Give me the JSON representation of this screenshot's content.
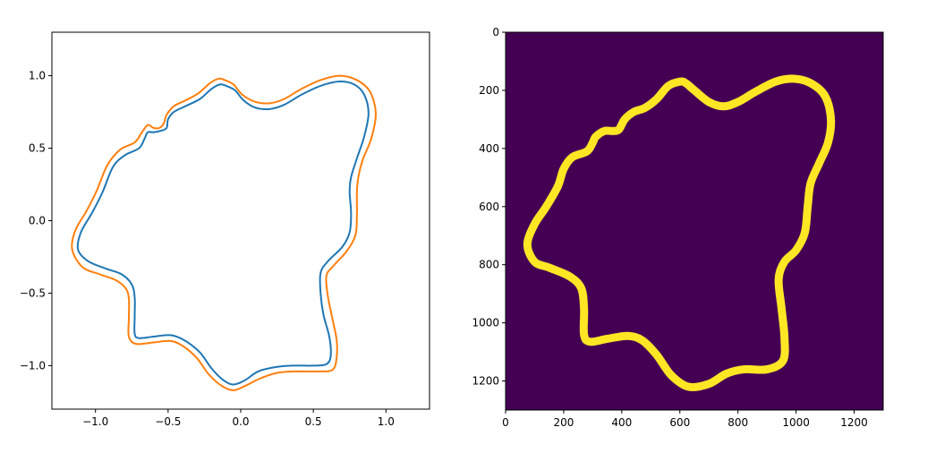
{
  "chart_data": [
    {
      "type": "line",
      "title": "",
      "xlabel": "",
      "ylabel": "",
      "xlim": [
        -1.3,
        1.3
      ],
      "ylim": [
        -1.3,
        1.3
      ],
      "xticks": [
        -1.0,
        -0.5,
        0.0,
        0.5,
        1.0
      ],
      "xtick_labels": [
        "−1.0",
        "−0.5",
        "0.0",
        "0.5",
        "1.0"
      ],
      "yticks": [
        1.0,
        0.5,
        0.0,
        -0.5,
        -1.0
      ],
      "ytick_labels": [
        "1.0",
        "0.5",
        "0.0",
        "−0.5",
        "−1.0"
      ],
      "grid": false,
      "series": [
        {
          "color": "#1f77b4",
          "closed": true,
          "points": [
            [
              -0.1,
              0.93
            ],
            [
              -0.04,
              0.9
            ],
            [
              0.02,
              0.83
            ],
            [
              0.1,
              0.78
            ],
            [
              0.2,
              0.77
            ],
            [
              0.3,
              0.8
            ],
            [
              0.42,
              0.87
            ],
            [
              0.55,
              0.93
            ],
            [
              0.68,
              0.96
            ],
            [
              0.78,
              0.94
            ],
            [
              0.85,
              0.87
            ],
            [
              0.88,
              0.74
            ],
            [
              0.85,
              0.58
            ],
            [
              0.8,
              0.43
            ],
            [
              0.76,
              0.3
            ],
            [
              0.75,
              0.2
            ],
            [
              0.76,
              0.05
            ],
            [
              0.75,
              -0.08
            ],
            [
              0.7,
              -0.18
            ],
            [
              0.6,
              -0.28
            ],
            [
              0.55,
              -0.36
            ],
            [
              0.55,
              -0.5
            ],
            [
              0.57,
              -0.65
            ],
            [
              0.61,
              -0.8
            ],
            [
              0.62,
              -0.93
            ],
            [
              0.59,
              -0.99
            ],
            [
              0.5,
              -1.0
            ],
            [
              0.36,
              -1.0
            ],
            [
              0.24,
              -1.01
            ],
            [
              0.12,
              -1.04
            ],
            [
              0.03,
              -1.1
            ],
            [
              -0.05,
              -1.13
            ],
            [
              -0.12,
              -1.1
            ],
            [
              -0.2,
              -1.02
            ],
            [
              -0.28,
              -0.91
            ],
            [
              -0.38,
              -0.83
            ],
            [
              -0.48,
              -0.79
            ],
            [
              -0.6,
              -0.8
            ],
            [
              -0.7,
              -0.81
            ],
            [
              -0.73,
              -0.78
            ],
            [
              -0.73,
              -0.66
            ],
            [
              -0.73,
              -0.53
            ],
            [
              -0.75,
              -0.44
            ],
            [
              -0.82,
              -0.37
            ],
            [
              -0.93,
              -0.33
            ],
            [
              -1.05,
              -0.28
            ],
            [
              -1.12,
              -0.2
            ],
            [
              -1.1,
              -0.08
            ],
            [
              -1.02,
              0.06
            ],
            [
              -0.95,
              0.2
            ],
            [
              -0.88,
              0.37
            ],
            [
              -0.8,
              0.45
            ],
            [
              -0.7,
              0.5
            ],
            [
              -0.66,
              0.57
            ],
            [
              -0.64,
              0.61
            ],
            [
              -0.6,
              0.61
            ],
            [
              -0.55,
              0.62
            ],
            [
              -0.51,
              0.64
            ],
            [
              -0.5,
              0.7
            ],
            [
              -0.46,
              0.75
            ],
            [
              -0.38,
              0.79
            ],
            [
              -0.28,
              0.84
            ],
            [
              -0.2,
              0.91
            ],
            [
              -0.14,
              0.94
            ]
          ]
        },
        {
          "color": "#ff7f0e",
          "closed": true,
          "points": [
            [
              -0.11,
              0.97
            ],
            [
              -0.05,
              0.94
            ],
            [
              0.01,
              0.87
            ],
            [
              0.1,
              0.82
            ],
            [
              0.2,
              0.81
            ],
            [
              0.3,
              0.84
            ],
            [
              0.42,
              0.91
            ],
            [
              0.55,
              0.97
            ],
            [
              0.68,
              1.0
            ],
            [
              0.8,
              0.97
            ],
            [
              0.89,
              0.89
            ],
            [
              0.93,
              0.74
            ],
            [
              0.9,
              0.57
            ],
            [
              0.84,
              0.42
            ],
            [
              0.81,
              0.3
            ],
            [
              0.8,
              0.2
            ],
            [
              0.8,
              0.04
            ],
            [
              0.79,
              -0.1
            ],
            [
              0.73,
              -0.21
            ],
            [
              0.64,
              -0.31
            ],
            [
              0.59,
              -0.38
            ],
            [
              0.6,
              -0.52
            ],
            [
              0.63,
              -0.67
            ],
            [
              0.66,
              -0.82
            ],
            [
              0.66,
              -0.95
            ],
            [
              0.63,
              -1.03
            ],
            [
              0.52,
              -1.04
            ],
            [
              0.37,
              -1.04
            ],
            [
              0.25,
              -1.05
            ],
            [
              0.13,
              -1.09
            ],
            [
              0.03,
              -1.14
            ],
            [
              -0.05,
              -1.17
            ],
            [
              -0.13,
              -1.14
            ],
            [
              -0.22,
              -1.06
            ],
            [
              -0.3,
              -0.95
            ],
            [
              -0.39,
              -0.87
            ],
            [
              -0.48,
              -0.83
            ],
            [
              -0.6,
              -0.84
            ],
            [
              -0.72,
              -0.85
            ],
            [
              -0.77,
              -0.8
            ],
            [
              -0.77,
              -0.67
            ],
            [
              -0.77,
              -0.54
            ],
            [
              -0.79,
              -0.47
            ],
            [
              -0.86,
              -0.41
            ],
            [
              -0.97,
              -0.37
            ],
            [
              -1.09,
              -0.32
            ],
            [
              -1.16,
              -0.2
            ],
            [
              -1.14,
              -0.07
            ],
            [
              -1.06,
              0.07
            ],
            [
              -0.99,
              0.21
            ],
            [
              -0.92,
              0.38
            ],
            [
              -0.83,
              0.49
            ],
            [
              -0.73,
              0.54
            ],
            [
              -0.68,
              0.61
            ],
            [
              -0.64,
              0.66
            ],
            [
              -0.6,
              0.64
            ],
            [
              -0.56,
              0.64
            ],
            [
              -0.53,
              0.67
            ],
            [
              -0.51,
              0.73
            ],
            [
              -0.46,
              0.79
            ],
            [
              -0.38,
              0.83
            ],
            [
              -0.29,
              0.88
            ],
            [
              -0.21,
              0.95
            ],
            [
              -0.15,
              0.98
            ]
          ]
        }
      ]
    },
    {
      "type": "heatmap",
      "title": "",
      "xlabel": "",
      "ylabel": "",
      "xlim": [
        0,
        1300
      ],
      "ylim": [
        1300,
        0
      ],
      "xticks": [
        0,
        200,
        400,
        600,
        800,
        1000,
        1200
      ],
      "xtick_labels": [
        "0",
        "200",
        "400",
        "600",
        "800",
        "1000",
        "1200"
      ],
      "yticks": [
        0,
        200,
        400,
        600,
        800,
        1000,
        1200
      ],
      "ytick_labels": [
        "0",
        "200",
        "400",
        "600",
        "800",
        "1000",
        "1200"
      ],
      "background_color": "#440154",
      "foreground_color": "#fde725",
      "grid": false,
      "contour_points": [
        [
          600,
          170
        ],
        [
          620,
          175
        ],
        [
          650,
          200
        ],
        [
          700,
          240
        ],
        [
          750,
          255
        ],
        [
          800,
          240
        ],
        [
          860,
          205
        ],
        [
          930,
          170
        ],
        [
          990,
          160
        ],
        [
          1050,
          175
        ],
        [
          1100,
          220
        ],
        [
          1120,
          300
        ],
        [
          1110,
          380
        ],
        [
          1080,
          450
        ],
        [
          1050,
          520
        ],
        [
          1040,
          600
        ],
        [
          1030,
          690
        ],
        [
          1000,
          750
        ],
        [
          960,
          790
        ],
        [
          940,
          850
        ],
        [
          950,
          950
        ],
        [
          960,
          1050
        ],
        [
          955,
          1130
        ],
        [
          900,
          1160
        ],
        [
          820,
          1160
        ],
        [
          760,
          1175
        ],
        [
          700,
          1210
        ],
        [
          630,
          1220
        ],
        [
          570,
          1180
        ],
        [
          520,
          1110
        ],
        [
          470,
          1060
        ],
        [
          420,
          1045
        ],
        [
          350,
          1055
        ],
        [
          290,
          1065
        ],
        [
          270,
          1040
        ],
        [
          270,
          950
        ],
        [
          260,
          880
        ],
        [
          220,
          840
        ],
        [
          150,
          810
        ],
        [
          100,
          790
        ],
        [
          75,
          730
        ],
        [
          100,
          660
        ],
        [
          140,
          600
        ],
        [
          180,
          530
        ],
        [
          200,
          470
        ],
        [
          230,
          430
        ],
        [
          280,
          410
        ],
        [
          300,
          380
        ],
        [
          310,
          360
        ],
        [
          340,
          340
        ],
        [
          370,
          340
        ],
        [
          390,
          335
        ],
        [
          410,
          300
        ],
        [
          440,
          275
        ],
        [
          480,
          260
        ],
        [
          520,
          230
        ],
        [
          560,
          185
        ]
      ]
    }
  ]
}
